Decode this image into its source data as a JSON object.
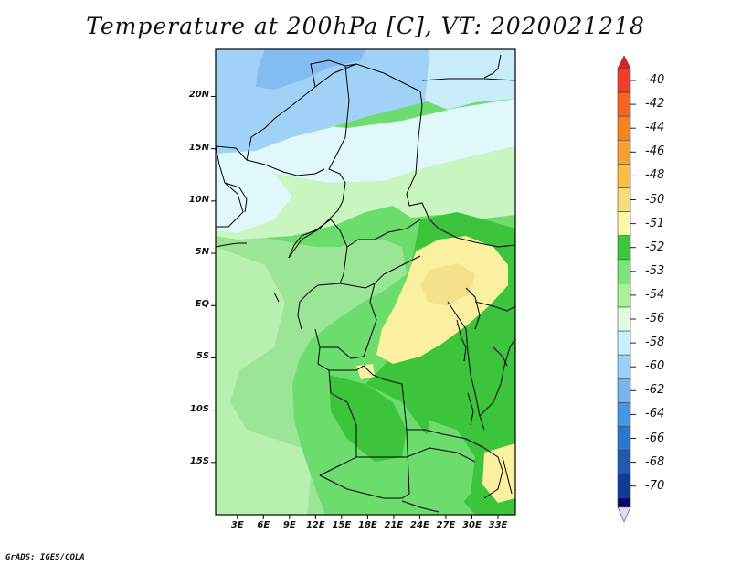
{
  "title": "Temperature at 200hPa [C], VT: 2020021218",
  "credit": "GrADS: IGES/COLA",
  "map": {
    "lat_labels": [
      "20N",
      "15N",
      "10N",
      "5N",
      "EQ",
      "5S",
      "10S",
      "15S"
    ],
    "lat_values": [
      20,
      15,
      10,
      5,
      0,
      -5,
      -10,
      -15
    ],
    "lon_labels": [
      "3E",
      "6E",
      "9E",
      "12E",
      "15E",
      "18E",
      "21E",
      "24E",
      "27E",
      "30E",
      "33E"
    ],
    "lon_values": [
      3,
      6,
      9,
      12,
      15,
      18,
      21,
      24,
      27,
      30,
      33
    ],
    "lon_range": [
      0.5,
      35
    ],
    "lat_range": [
      -20,
      24.5
    ]
  },
  "colorbar": {
    "labels": [
      "-40",
      "-42",
      "-44",
      "-46",
      "-48",
      "-50",
      "-51",
      "-52",
      "-53",
      "-54",
      "-56",
      "-58",
      "-60",
      "-62",
      "-64",
      "-66",
      "-68",
      "-70"
    ],
    "colors": [
      "#f03c28",
      "#f8641e",
      "#f8821e",
      "#f8a032",
      "#f8be46",
      "#f8dc78",
      "#fafaaa",
      "#3cc83c",
      "#78e678",
      "#aaf096",
      "#e0fce0",
      "#c8f0fa",
      "#96d2fa",
      "#78b4f0",
      "#4696e6",
      "#2878d2",
      "#1e5ab4",
      "#0c3c96",
      "#000a6e"
    ],
    "top_arrow_color": "#e61e1e",
    "bottom_arrow_color": "#dcdcf8"
  },
  "colors": {
    "very_light_blue": "#e0f8fa",
    "light_blue": "#c8ecfa",
    "medium_blue": "#a0d2f8",
    "blue": "#82bcf0",
    "pale_green": "#c8f5c0",
    "light_green": "#9be696",
    "green": "#6cdc6c",
    "dark_green": "#3cc43c",
    "pale_yellow": "#faf0a0",
    "yellow": "#f5e18c",
    "border": "#000000"
  }
}
